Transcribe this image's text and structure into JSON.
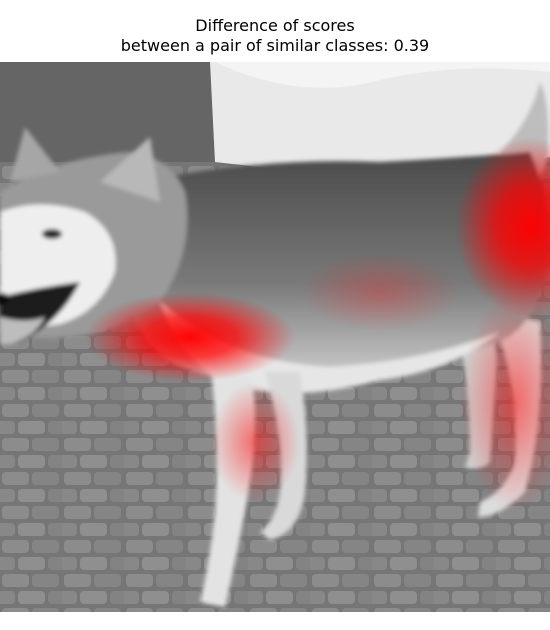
{
  "figure": {
    "title_line1": "Difference of scores",
    "title_line2": "between a pair of similar classes: 0.39"
  },
  "image": {
    "subject": "husky-dog",
    "background": "grayscale",
    "overlay": "saliency-heatmap"
  },
  "colors": {
    "heatmap": "#ff0000",
    "title_text": "#000000",
    "page_bg": "#ffffff"
  }
}
